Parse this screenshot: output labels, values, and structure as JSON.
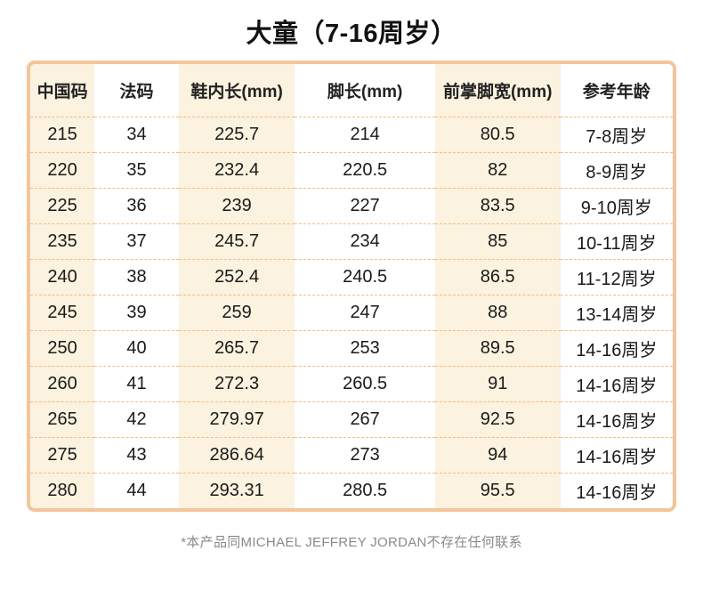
{
  "title": "大童（7-16周岁）",
  "footer_note": "*本产品同MICHAEL JEFFREY JORDAN不存在任何联系",
  "colors": {
    "table_border": "#f4c59b",
    "column_stripe": "#fbf2df",
    "row_divider": "#f2bc85",
    "text": "#1a1a1a",
    "footer_text": "#8a8a8a"
  },
  "table": {
    "columns": [
      "中国码",
      "法码",
      "鞋内长(mm)",
      "脚长(mm)",
      "前掌脚宽(mm)",
      "参考年龄"
    ],
    "rows": [
      [
        "215",
        "34",
        "225.7",
        "214",
        "80.5",
        "7-8周岁"
      ],
      [
        "220",
        "35",
        "232.4",
        "220.5",
        "82",
        "8-9周岁"
      ],
      [
        "225",
        "36",
        "239",
        "227",
        "83.5",
        "9-10周岁"
      ],
      [
        "235",
        "37",
        "245.7",
        "234",
        "85",
        "10-11周岁"
      ],
      [
        "240",
        "38",
        "252.4",
        "240.5",
        "86.5",
        "11-12周岁"
      ],
      [
        "245",
        "39",
        "259",
        "247",
        "88",
        "13-14周岁"
      ],
      [
        "250",
        "40",
        "265.7",
        "253",
        "89.5",
        "14-16周岁"
      ],
      [
        "260",
        "41",
        "272.3",
        "260.5",
        "91",
        "14-16周岁"
      ],
      [
        "265",
        "42",
        "279.97",
        "267",
        "92.5",
        "14-16周岁"
      ],
      [
        "275",
        "43",
        "286.64",
        "273",
        "94",
        "14-16周岁"
      ],
      [
        "280",
        "44",
        "293.31",
        "280.5",
        "95.5",
        "14-16周岁"
      ]
    ]
  }
}
